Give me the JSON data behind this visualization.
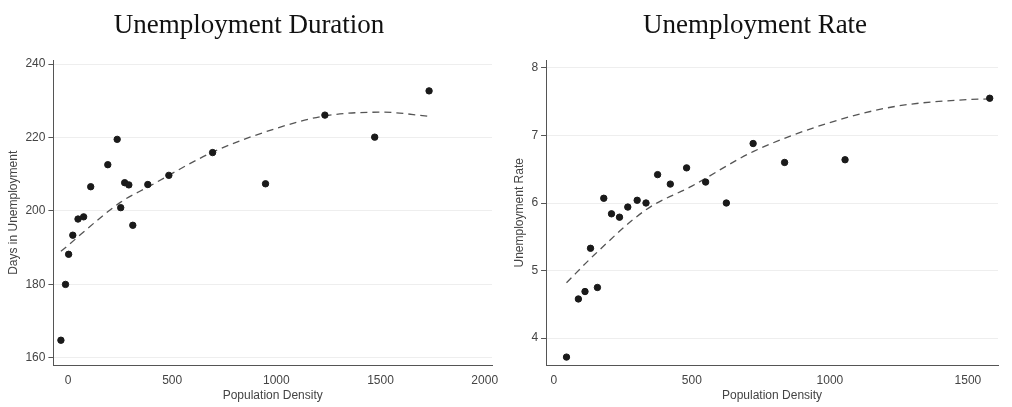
{
  "chart_data": [
    {
      "type": "scatter",
      "title": "Unemployment Duration",
      "xlabel": "Population Density",
      "ylabel": "Days in Unemployment",
      "xlim": [
        -70,
        2035
      ],
      "ylim": [
        158,
        241
      ],
      "xticks": [
        0,
        500,
        1000,
        1500,
        2000
      ],
      "yticks": [
        160,
        180,
        200,
        220,
        240
      ],
      "grid": "y",
      "marker": "circle",
      "series": [
        {
          "type": "scatter",
          "color": "#1a1a1a",
          "x": [
            -34,
            -12,
            3,
            23,
            48,
            75,
            109,
            191,
            236,
            253,
            272,
            292,
            311,
            383,
            484,
            694,
            948,
            1233,
            1472,
            1733
          ],
          "values": [
            164.8,
            180,
            188.2,
            193.4,
            197.8,
            198.4,
            206.6,
            212.6,
            219.5,
            200.9,
            207.7,
            207.1,
            196.1,
            207.2,
            209.7,
            215.9,
            207.4,
            226.1,
            220.1,
            232.7
          ]
        },
        {
          "type": "line",
          "color": "#555555",
          "marker": "none",
          "line_style": "dashed",
          "x": [
            -34,
            253,
            383,
            694,
            1000,
            1233,
            1508,
            1733
          ],
          "values": [
            189.0,
            202.4,
            206.5,
            216,
            222.5,
            225.9,
            226.9,
            225.8
          ]
        }
      ]
    },
    {
      "type": "scatter",
      "title": "Unemployment Rate",
      "xlabel": "Population Density",
      "ylabel": "Unemployment Rate",
      "xlim": [
        -28,
        1609
      ],
      "ylim": [
        3.6,
        8.11
      ],
      "xticks": [
        0,
        500,
        1000,
        1500
      ],
      "yticks": [
        4,
        5,
        6,
        7,
        8
      ],
      "grid": "y",
      "marker": "circle",
      "series": [
        {
          "type": "scatter",
          "color": "#1a1a1a",
          "x": [
            46,
            89,
            113,
            158,
            133,
            181,
            209,
            238,
            268,
            302,
            334,
            376,
            422,
            481,
            550,
            625,
            722,
            836,
            1055,
            1579
          ],
          "values": [
            3.72,
            4.58,
            4.69,
            4.75,
            5.33,
            6.07,
            5.84,
            5.79,
            5.94,
            6.04,
            6.0,
            6.42,
            6.28,
            6.52,
            6.31,
            6.0,
            6.88,
            6.6,
            6.64,
            7.55
          ]
        },
        {
          "type": "line",
          "color": "#555555",
          "marker": "none",
          "line_style": "dashed",
          "x": [
            46,
            146,
            334,
            500,
            722,
            1000,
            1238,
            1500,
            1579
          ],
          "values": [
            4.82,
            5.23,
            5.9,
            6.25,
            6.76,
            7.19,
            7.43,
            7.53,
            7.54
          ]
        }
      ]
    }
  ]
}
